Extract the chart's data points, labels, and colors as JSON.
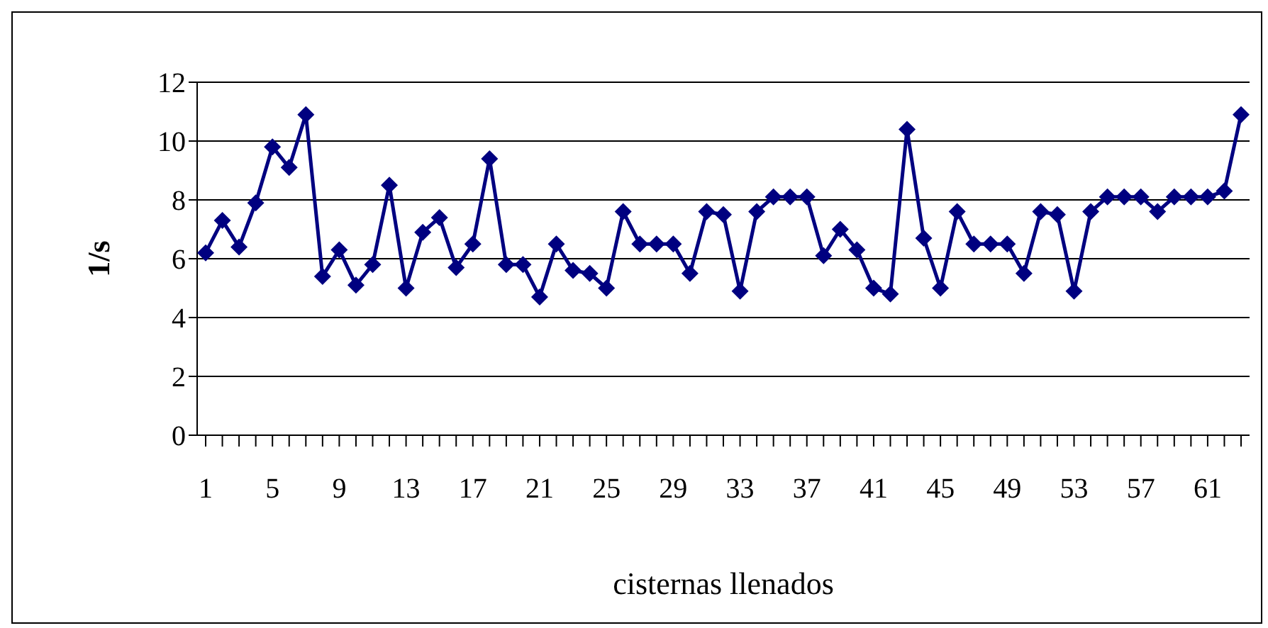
{
  "chart_data": {
    "type": "line",
    "xlabel": "cisternas llenados",
    "ylabel": "1/s",
    "categories": [
      "1",
      null,
      null,
      null,
      "5",
      null,
      null,
      null,
      "9",
      null,
      null,
      null,
      "13",
      null,
      null,
      null,
      "17",
      null,
      null,
      null,
      "21",
      null,
      null,
      null,
      "25",
      null,
      null,
      null,
      "29",
      null,
      null,
      null,
      "33",
      null,
      null,
      null,
      "37",
      null,
      null,
      null,
      "41",
      null,
      null,
      null,
      "45",
      null,
      null,
      null,
      "49",
      null,
      null,
      null,
      "53",
      null,
      null,
      null,
      "57",
      null,
      null,
      null,
      "61",
      null,
      null
    ],
    "series": [
      {
        "color": "#000080",
        "values": [
          6.2,
          7.3,
          6.4,
          7.9,
          9.8,
          9.1,
          10.9,
          5.4,
          6.3,
          5.1,
          5.8,
          8.5,
          5.0,
          6.9,
          7.4,
          5.7,
          6.5,
          9.4,
          5.8,
          5.8,
          4.7,
          6.5,
          5.6,
          5.5,
          5.0,
          7.6,
          6.5,
          6.5,
          6.5,
          5.5,
          7.6,
          7.5,
          4.9,
          7.6,
          8.1,
          8.1,
          8.1,
          6.1,
          7.0,
          6.3,
          5.0,
          4.8,
          10.4,
          6.7,
          5.0,
          7.6,
          6.5,
          6.5,
          6.5,
          5.5,
          7.6,
          7.5,
          4.9,
          7.6,
          8.1,
          8.1,
          8.1,
          7.6,
          8.1,
          8.1,
          8.1,
          8.3,
          10.9
        ]
      }
    ],
    "ylim": [
      0,
      12
    ],
    "yticks": [
      0,
      2,
      4,
      6,
      8,
      10,
      12
    ],
    "grid": "y",
    "marker": "diamond",
    "legend": false
  }
}
